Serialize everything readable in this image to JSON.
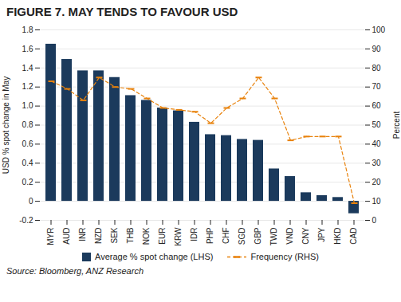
{
  "chart_data": {
    "type": "bar",
    "title": "FIGURE 7. MAY TENDS TO FAVOUR USD",
    "source": "Source: Bloomberg, ANZ Research",
    "categories": [
      "MYR",
      "AUD",
      "INR",
      "NZD",
      "SEK",
      "THB",
      "NOK",
      "EUR",
      "KRW",
      "IDR",
      "PHP",
      "CHF",
      "SGD",
      "GBP",
      "TWD",
      "VND",
      "CNY",
      "JPY",
      "HKD",
      "CAD"
    ],
    "series": [
      {
        "name": "Average % spot change (LHS)",
        "type": "bar",
        "color": "#1b3a5c",
        "values": [
          1.65,
          1.49,
          1.37,
          1.37,
          1.3,
          1.11,
          1.06,
          0.98,
          0.95,
          0.83,
          0.7,
          0.69,
          0.65,
          0.64,
          0.34,
          0.26,
          0.09,
          0.06,
          0.04,
          -0.13
        ]
      },
      {
        "name": "Frequency (RHS)",
        "type": "line",
        "axis": "y2",
        "color": "#e8820c",
        "line_style": "dashed",
        "marker": "dash",
        "values": [
          73,
          69,
          63,
          75,
          70,
          69,
          64,
          59,
          58,
          57,
          51,
          59,
          64,
          75,
          64,
          42,
          44,
          44,
          44,
          9
        ]
      }
    ],
    "ylabel": "USD % spot change in May",
    "y2label": "Percent",
    "ylim": [
      -0.2,
      1.8
    ],
    "yticks": [
      -0.2,
      0,
      0.2,
      0.4,
      0.6,
      0.8,
      {
        "value": 1.0,
        "label": "1.0"
      },
      1.2,
      1.4,
      1.6,
      1.8
    ],
    "y2lim": [
      0,
      100
    ],
    "y2ticks": [
      0,
      10,
      20,
      30,
      40,
      50,
      60,
      70,
      80,
      90,
      100
    ],
    "grid": true,
    "legend": "bottom"
  }
}
